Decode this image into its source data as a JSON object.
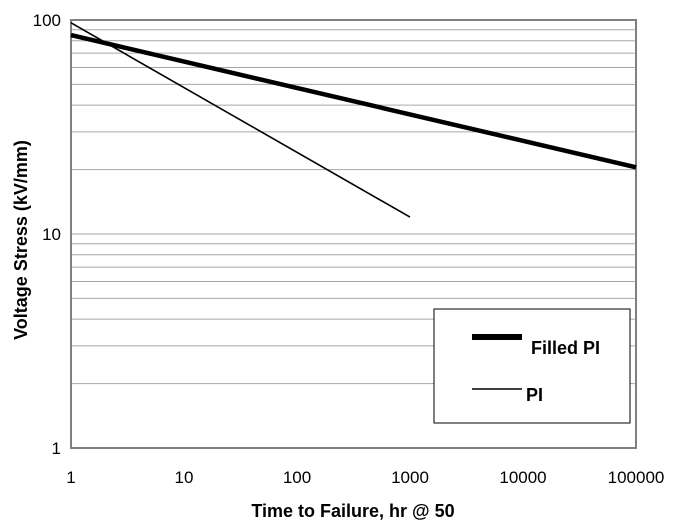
{
  "chart_data": {
    "type": "line",
    "xlabel": "Time to Failure, hr @ 50",
    "ylabel": "Voltage Stress (kV/mm)",
    "x_scale": "log",
    "y_scale": "log",
    "xlim": [
      1,
      100000
    ],
    "ylim": [
      1,
      100
    ],
    "x_ticks": [
      "1",
      "10",
      "100",
      "1000",
      "10000",
      "100000"
    ],
    "y_ticks": [
      "1",
      "10",
      "100"
    ],
    "grid": "horizontal",
    "legend_position": "bottom-right",
    "series": [
      {
        "name": "Filled PI",
        "style": "thick",
        "color": "#000000",
        "points": [
          [
            1,
            85
          ],
          [
            100000,
            20.5
          ]
        ]
      },
      {
        "name": "PI",
        "style": "thin",
        "color": "#000000",
        "points": [
          [
            1,
            97
          ],
          [
            1000,
            12
          ]
        ]
      }
    ]
  }
}
